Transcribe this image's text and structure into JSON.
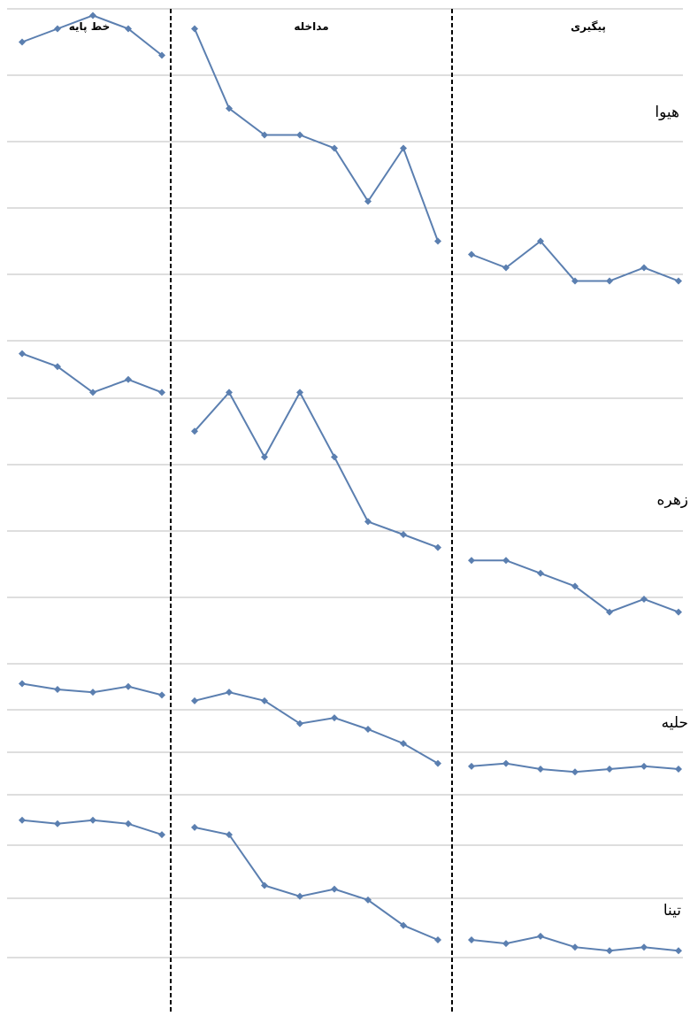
{
  "chart_data": {
    "type": "line",
    "phases": [
      "خط پایه",
      "مداخله",
      "پیگیری"
    ],
    "line_color": "#5b7fb0",
    "grid_color": "#bdbdbd",
    "divider_color": "#000000",
    "subjects": [
      {
        "name": "هیوا",
        "baseline": [
          85,
          87,
          89,
          87,
          83
        ],
        "intervention": [
          87,
          75,
          71,
          71,
          69,
          61,
          69,
          55
        ],
        "followup": [
          53,
          51,
          55,
          49,
          49,
          51,
          49
        ]
      },
      {
        "name": "زهره",
        "baseline": [
          88,
          86,
          82,
          84,
          82
        ],
        "intervention": [
          76,
          82,
          72,
          82,
          72,
          62,
          60,
          58
        ],
        "followup": [
          56,
          56,
          54,
          52,
          48,
          50,
          48
        ]
      },
      {
        "name": "حلیه",
        "baseline": [
          84.5,
          83.5,
          83,
          84,
          82.5
        ],
        "intervention": [
          81.5,
          83,
          81.5,
          77.5,
          78.5,
          76.5,
          74,
          70.5
        ],
        "followup": [
          70,
          70.5,
          69.5,
          69,
          69.5,
          70,
          69.5
        ]
      },
      {
        "name": "تینا",
        "baseline": [
          86.5,
          86,
          86.5,
          86,
          84.5
        ],
        "intervention": [
          85.5,
          84.5,
          77.5,
          76,
          77,
          75.5,
          72,
          70
        ],
        "followup": [
          70,
          69.5,
          70.5,
          69,
          68.5,
          69,
          68.5
        ]
      }
    ]
  }
}
